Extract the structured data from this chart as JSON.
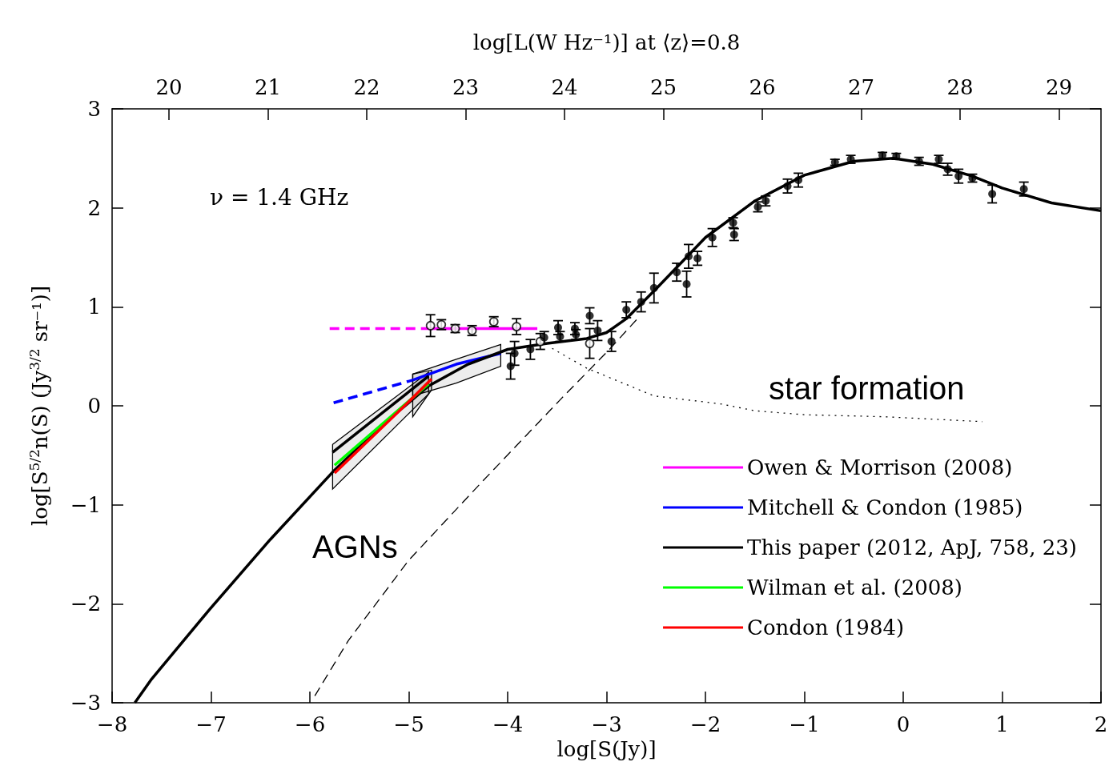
{
  "chart_data": {
    "type": "line",
    "xlabel": "log[S(Jy)]",
    "ylabel": "log[S$^{5/2}$n(S) (Jy$^{3/2}$ sr⁻¹)]",
    "x2label": "log[L(W Hz⁻¹)] at ⟨z⟩=0.8",
    "xlim": [
      -8,
      2
    ],
    "xticks": [
      -8,
      -7,
      -6,
      -5,
      -4,
      -3,
      -2,
      -1,
      0,
      1,
      2
    ],
    "ylim": [
      -3,
      3
    ],
    "yticks": [
      -3,
      -2,
      -1,
      0,
      1,
      2,
      3
    ],
    "x2lim": [
      19.425,
      29.425
    ],
    "x2ticks": [
      20,
      21,
      22,
      23,
      24,
      25,
      26,
      27,
      28,
      29
    ],
    "grid": false,
    "legend": "bottom right",
    "annotations": [
      "ν = 1.4 GHz",
      "star formation",
      "AGNs"
    ],
    "series": [
      {
        "name": "Owen & Morrison (2008)",
        "color": "#ff00ff",
        "line_style": "solid",
        "x": [
          -4.8,
          -3.7
        ],
        "values": [
          0.78,
          0.78
        ]
      },
      {
        "color": "#ff00ff",
        "line_style": "dashed",
        "x": [
          -5.8,
          -4.8
        ],
        "values": [
          0.78,
          0.78
        ]
      },
      {
        "name": "Mitchell & Condon (1985)",
        "color": "#0000ff",
        "line_style": "solid",
        "x": [
          -4.96,
          -4.52,
          -4.07
        ],
        "values": [
          0.26,
          0.42,
          0.53
        ],
        "lower": [
          0.1,
          0.23,
          0.4
        ],
        "upper": [
          0.32,
          0.47,
          0.62
        ]
      },
      {
        "color": "#0000ff",
        "line_style": "dashed",
        "x": [
          -5.76,
          -4.96
        ],
        "values": [
          0.03,
          0.26
        ]
      },
      {
        "name": "This paper (2012, ApJ, 758, 23)",
        "color": "#000000",
        "line_style": "solid",
        "x": [
          -7.77,
          -7.6,
          -7.0,
          -6.4,
          -5.77,
          -5.3,
          -4.8,
          -4.4,
          -4.0,
          -3.6,
          -3.2,
          -3.0,
          -2.8,
          -2.5,
          -2.0,
          -1.5,
          -1.0,
          -0.5,
          -0.1,
          0.3,
          0.7,
          1.0,
          1.5,
          2.0
        ],
        "values": [
          -3.0,
          -2.76,
          -2.04,
          -1.35,
          -0.67,
          -0.22,
          0.2,
          0.42,
          0.57,
          0.63,
          0.68,
          0.74,
          0.88,
          1.18,
          1.7,
          2.07,
          2.33,
          2.47,
          2.5,
          2.44,
          2.32,
          2.2,
          2.05,
          1.97
        ]
      },
      {
        "color": "#000000",
        "line_style": "solid",
        "x": [
          -5.77,
          -4.8
        ],
        "values": [
          -0.47,
          0.3
        ],
        "lower": [
          -0.84,
          0.12
        ],
        "upper": [
          -0.39,
          0.34
        ]
      },
      {
        "name": "Wilman et al. (2008)",
        "color": "#00ff00",
        "line_style": "solid",
        "x": [
          -5.75,
          -4.8
        ],
        "values": [
          -0.6,
          0.22
        ]
      },
      {
        "name": "Condon (1984)",
        "color": "#ff0000",
        "line_style": "solid",
        "x": [
          -5.75,
          -4.96,
          -4.77
        ],
        "values": [
          -0.68,
          0.08,
          0.27
        ],
        "lower": [
          null,
          -0.11,
          0.16
        ],
        "upper": [
          null,
          0.32,
          0.36
        ]
      },
      {
        "color": "#000000",
        "line_style": "dashed",
        "x": [
          -5.95,
          -5.61,
          -5.0,
          -4.28,
          -3.47,
          -2.98,
          -2.66
        ],
        "values": [
          -2.93,
          -2.37,
          -1.56,
          -0.79,
          0.06,
          0.56,
          0.91
        ]
      },
      {
        "color": "#000000",
        "line_style": "dotted",
        "x": [
          -3.55,
          -3.2,
          -2.52,
          -1.85,
          -1.5,
          -1.0,
          -0.2,
          0.8
        ],
        "values": [
          0.58,
          0.38,
          0.1,
          0.02,
          -0.05,
          -0.09,
          -0.11,
          -0.16
        ]
      },
      {
        "type": "scatter",
        "color": "#000000",
        "marker": "open_circle",
        "x": [
          -4.78,
          -4.67,
          -4.53,
          -4.36,
          -4.14,
          -3.91,
          -3.67,
          -3.17
        ],
        "values": [
          0.81,
          0.82,
          0.78,
          0.76,
          0.85,
          0.8,
          0.65,
          0.63
        ],
        "errors": [
          0.11,
          0.05,
          0.04,
          0.05,
          0.05,
          0.08,
          0.08,
          0.15
        ]
      },
      {
        "type": "scatter",
        "color": "#000000",
        "marker": "circle",
        "x": [
          -3.97,
          -3.93,
          -3.77,
          -3.63,
          -3.49,
          -3.47,
          -3.32,
          -3.31,
          -3.17,
          -3.09,
          -2.95,
          -2.8,
          -2.65,
          -2.52,
          -2.29,
          -2.19,
          -2.17,
          -2.08,
          -1.93,
          -1.72,
          -1.71,
          -1.47,
          -1.39,
          -1.17,
          -1.06,
          -0.69,
          -0.53,
          -0.21,
          -0.07,
          0.16,
          0.36,
          0.45,
          0.56,
          0.7,
          0.9,
          1.22
        ],
        "values": [
          0.4,
          0.53,
          0.57,
          0.69,
          0.79,
          0.7,
          0.78,
          0.72,
          0.91,
          0.76,
          0.65,
          0.97,
          1.05,
          1.19,
          1.35,
          1.23,
          1.51,
          1.49,
          1.7,
          1.85,
          1.73,
          2.01,
          2.07,
          2.22,
          2.28,
          2.46,
          2.49,
          2.53,
          2.52,
          2.47,
          2.49,
          2.39,
          2.32,
          2.3,
          2.14,
          2.19
        ],
        "errors": [
          0.13,
          0.12,
          0.1,
          0.06,
          0.07,
          0.05,
          0.06,
          0.05,
          0.08,
          0.1,
          0.1,
          0.08,
          0.1,
          0.15,
          0.09,
          0.13,
          0.12,
          0.07,
          0.09,
          0.05,
          0.06,
          0.05,
          0.05,
          0.07,
          0.07,
          0.03,
          0.04,
          0.03,
          0.03,
          0.04,
          0.04,
          0.06,
          0.07,
          0.04,
          0.09,
          0.07
        ]
      }
    ]
  }
}
